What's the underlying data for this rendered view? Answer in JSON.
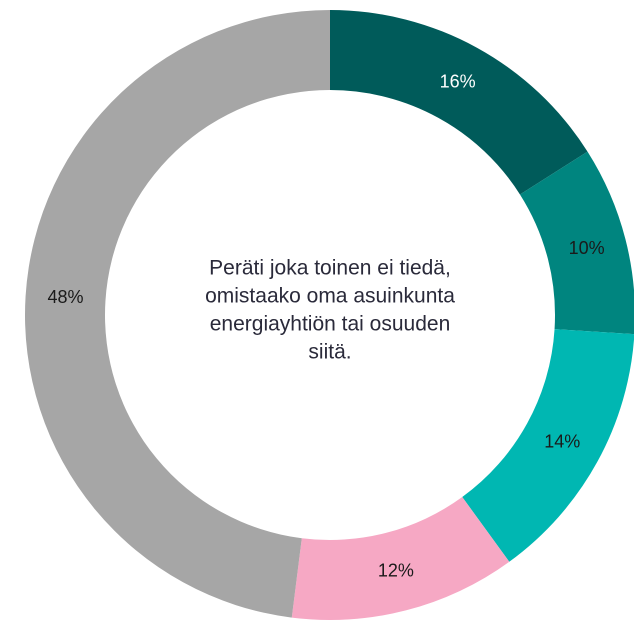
{
  "chart_data": {
    "type": "donut",
    "center_text": [
      "Peräti joka toinen ei tiedä,",
      "omistaako oma asuinkunta",
      "energiayhtiön tai osuuden",
      "siitä."
    ],
    "values": [
      16,
      10,
      14,
      12,
      48
    ],
    "value_labels": [
      "16%",
      "10%",
      "14%",
      "12%",
      "48%"
    ],
    "colors": [
      "#005b5a",
      "#00857f",
      "#00b7b2",
      "#f6a8c4",
      "#a6a6a6"
    ],
    "label_colors": [
      "#ffffff",
      "#1a1a1a",
      "#1a1a1a",
      "#1a1a1a",
      "#1a1a1a"
    ]
  }
}
